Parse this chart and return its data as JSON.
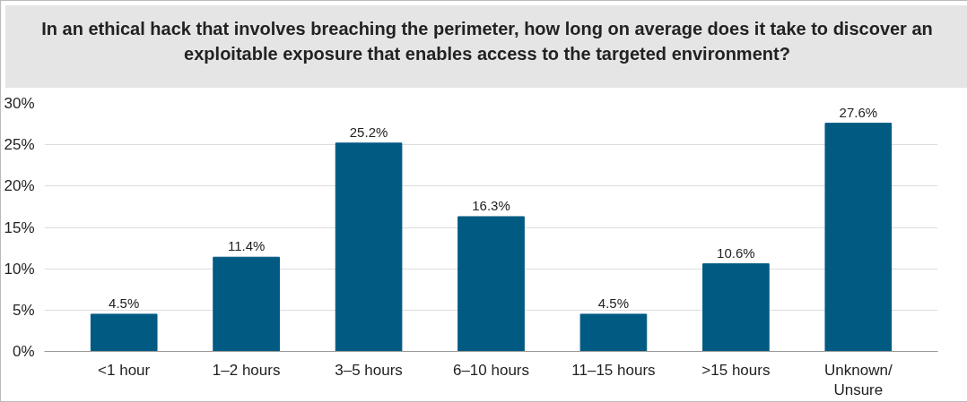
{
  "chart_data": {
    "type": "bar",
    "title": "In an ethical hack that involves breaching the perimeter, how long on average does it take to discover an exploitable exposure that enables access to the targeted environment?",
    "categories": [
      "<1 hour",
      "1–2 hours",
      "3–5 hours",
      "6–10 hours",
      "11–15 hours",
      ">15 hours",
      "Unknown/\nUnsure"
    ],
    "values": [
      4.5,
      11.4,
      25.2,
      16.3,
      4.5,
      10.6,
      27.6
    ],
    "value_labels": [
      "4.5%",
      "11.4%",
      "25.2%",
      "16.3%",
      "4.5%",
      "10.6%",
      "27.6%"
    ],
    "color": "#005a82",
    "ylim": [
      0,
      30
    ],
    "yticks": [
      {
        "value": 0,
        "label": "0%"
      },
      {
        "value": 5,
        "label": "5%"
      },
      {
        "value": 10,
        "label": "10%"
      },
      {
        "value": 15,
        "label": "15%"
      },
      {
        "value": 20,
        "label": "20%"
      },
      {
        "value": 25,
        "label": "25%"
      },
      {
        "value": 30,
        "label": "30%"
      }
    ],
    "grid": "y"
  }
}
